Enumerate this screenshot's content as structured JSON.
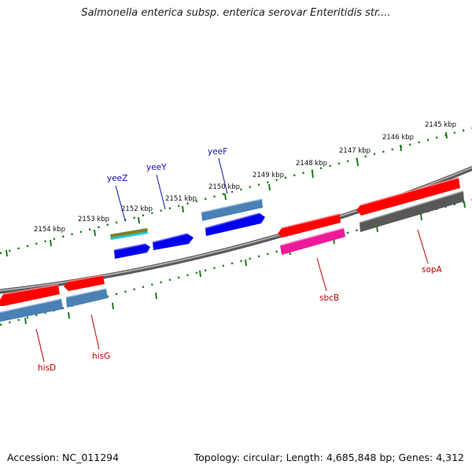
{
  "title": "Salmonella enterica subsp. enterica serovar Enteritidis str....",
  "footer": {
    "accession": "Accession: NC_011294",
    "stats": "Topology: circular; Length: 4,685,848 bp; Genes: 4,312"
  },
  "ruler_labels": [
    "2145 kbp",
    "2146 kbp",
    "2147 kbp",
    "2148 kbp",
    "2149 kbp",
    "2150 kbp",
    "2151 kbp",
    "2152 kbp",
    "2153 kbp",
    "2154 kbp"
  ],
  "gene_labels": [
    {
      "name": "yeeZ",
      "color": "#1010b0"
    },
    {
      "name": "yeeY",
      "color": "#1010b0"
    },
    {
      "name": "yeeF",
      "color": "#1010b0"
    },
    {
      "name": "hisD",
      "color": "#c00000"
    },
    {
      "name": "hisG",
      "color": "#c00000"
    },
    {
      "name": "sbcB",
      "color": "#c00000"
    },
    {
      "name": "sopA",
      "color": "#c00000"
    }
  ],
  "colors": {
    "ruler": "#1e7a1e",
    "backbone": "#808080",
    "red": "#ff0000",
    "blue": "#0000ee",
    "steel": "#4a80b4",
    "magenta": "#ee1a9a",
    "gray": "#585858",
    "olive": "#808020",
    "cyan": "#20c8d8"
  }
}
